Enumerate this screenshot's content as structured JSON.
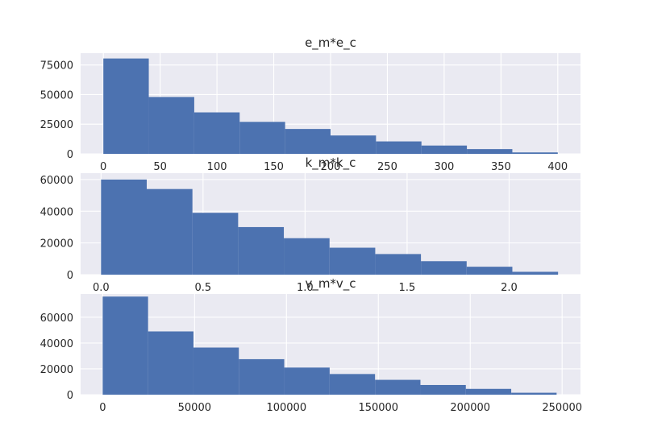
{
  "chart_data": [
    {
      "type": "bar",
      "title": "e_m*e_c",
      "xlabel": "",
      "ylabel": "",
      "bin_edges": [
        0,
        40,
        80,
        120,
        160,
        200,
        240,
        280,
        320,
        360,
        400
      ],
      "values": [
        80500,
        48000,
        35000,
        27000,
        21000,
        15500,
        10500,
        7000,
        4000,
        1200
      ],
      "xlim": [
        -20,
        420
      ],
      "ylim": [
        0,
        85000
      ],
      "xticks": [
        0,
        50,
        100,
        150,
        200,
        250,
        300,
        350,
        400
      ],
      "xtick_labels": [
        "0",
        "50",
        "100",
        "150",
        "200",
        "250",
        "300",
        "350",
        "400"
      ],
      "yticks": [
        0,
        25000,
        50000,
        75000
      ],
      "ytick_labels": [
        "0",
        "25000",
        "50000",
        "75000"
      ],
      "grid": true
    },
    {
      "type": "bar",
      "title": "k_m*k_c",
      "xlabel": "",
      "ylabel": "",
      "bin_edges": [
        0.0,
        0.224,
        0.448,
        0.672,
        0.896,
        1.12,
        1.344,
        1.568,
        1.792,
        2.016,
        2.24
      ],
      "values": [
        60000,
        54000,
        39000,
        30000,
        23000,
        17000,
        13000,
        8500,
        5000,
        1800
      ],
      "xlim": [
        -0.1,
        2.35
      ],
      "ylim": [
        0,
        64000
      ],
      "xticks": [
        0.0,
        0.5,
        1.0,
        1.5,
        2.0
      ],
      "xtick_labels": [
        "0.0",
        "0.5",
        "1.0",
        "1.5",
        "2.0"
      ],
      "yticks": [
        0,
        20000,
        40000,
        60000
      ],
      "ytick_labels": [
        "0",
        "20000",
        "40000",
        "60000"
      ],
      "grid": true
    },
    {
      "type": "bar",
      "title": "v_m*v_c",
      "xlabel": "",
      "ylabel": "",
      "bin_edges": [
        0,
        24700,
        49400,
        74100,
        98800,
        123500,
        148200,
        172900,
        197600,
        222300,
        247000
      ],
      "values": [
        76000,
        49000,
        36500,
        27500,
        21000,
        16000,
        11500,
        7500,
        4500,
        1500
      ],
      "xlim": [
        -12000,
        260000
      ],
      "ylim": [
        0,
        78000
      ],
      "xticks": [
        0,
        50000,
        100000,
        150000,
        200000,
        250000
      ],
      "xtick_labels": [
        "0",
        "50000",
        "100000",
        "150000",
        "200000",
        "250000"
      ],
      "yticks": [
        0,
        20000,
        40000,
        60000
      ],
      "ytick_labels": [
        "0",
        "20000",
        "40000",
        "60000"
      ],
      "grid": true
    }
  ],
  "colors": {
    "bar": "#4c72b0",
    "axes_background": "#eaeaf2",
    "grid": "#ffffff",
    "text": "#262626"
  }
}
